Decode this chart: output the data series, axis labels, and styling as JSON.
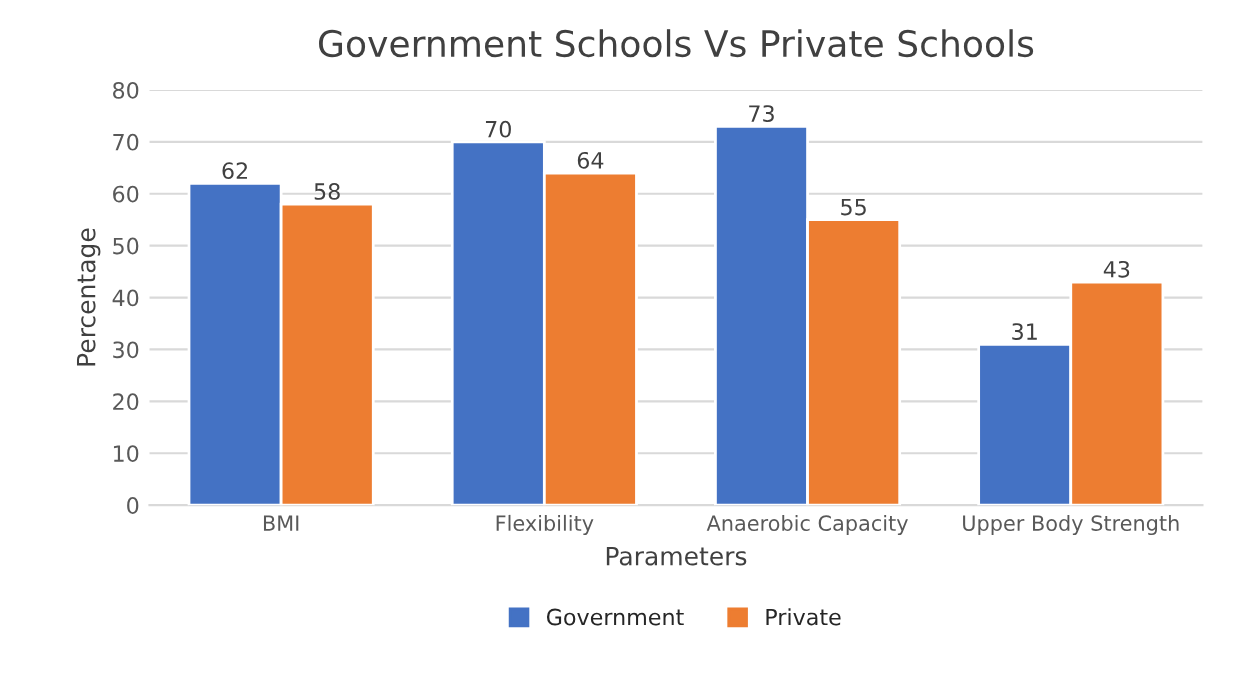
{
  "chart_data": {
    "type": "bar",
    "title": "Government Schools Vs Private Schools",
    "xlabel": "Parameters",
    "ylabel": "Percentage",
    "categories": [
      "BMI",
      "Flexibility",
      "Anaerobic Capacity",
      "Upper Body Strength"
    ],
    "series": [
      {
        "name": "Government",
        "color": "#4472c4",
        "values": [
          62,
          70,
          73,
          31
        ]
      },
      {
        "name": "Private",
        "color": "#ed7d31",
        "values": [
          58,
          64,
          55,
          43
        ]
      }
    ],
    "ylim": [
      0,
      80
    ],
    "yticks": [
      0,
      10,
      20,
      30,
      40,
      50,
      60,
      70,
      80
    ],
    "grid": "y",
    "legend": "bottom",
    "data_labels": true
  }
}
